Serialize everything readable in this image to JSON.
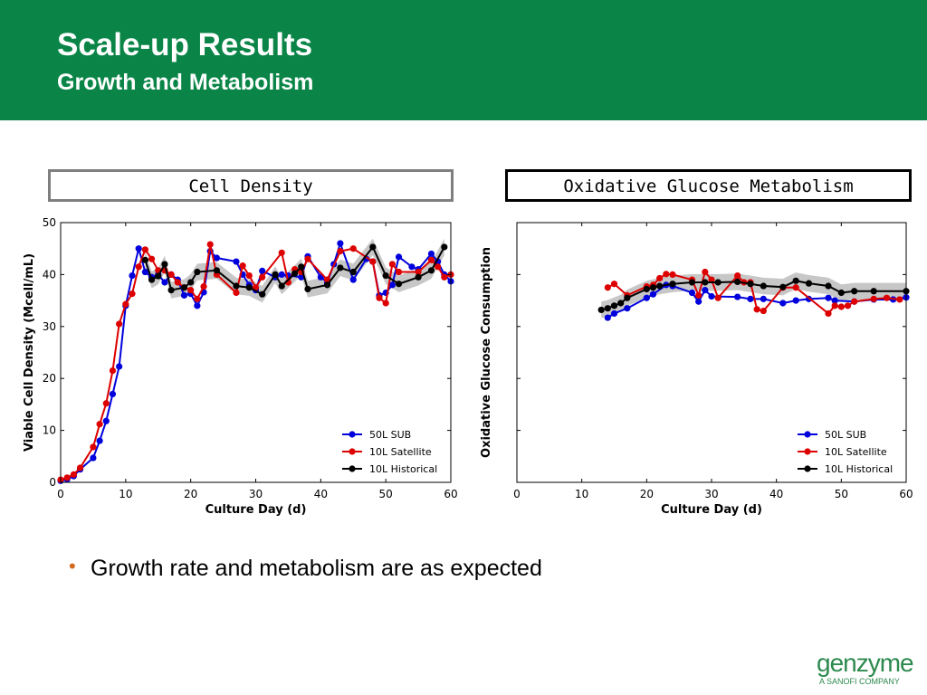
{
  "header": {
    "title": "Scale-up Results",
    "subtitle": "Growth and Metabolism"
  },
  "panels": {
    "left_label": "Cell Density",
    "right_label": "Oxidative Glucose Metabolism"
  },
  "bullet": {
    "text": "Growth rate and metabolism are as expected"
  },
  "logo": {
    "word": "genzyme",
    "tagline": "A SANOFI COMPANY"
  },
  "colors": {
    "header_green": "#0a8547",
    "series_blue": "#0000dd",
    "series_red": "#dd0000",
    "series_black": "#000000",
    "band_gray": "#999999",
    "bullet": "#d2691e"
  },
  "chart_data": [
    {
      "type": "line",
      "xlabel": "Culture Day (d)",
      "ylabel": "Viable Cell Density (Mcell/mL)",
      "xlim": [
        0,
        60
      ],
      "ylim": [
        0,
        50
      ],
      "xticks": [
        "0",
        "10",
        "20",
        "30",
        "40",
        "50",
        "60"
      ],
      "yticks": [
        "0",
        "10",
        "20",
        "30",
        "40",
        "50"
      ],
      "yticks_shown": true,
      "legend_position": "lower-right",
      "series": [
        {
          "name": "50L SUB",
          "color": "#0000dd",
          "points": [
            [
              0,
              0.3
            ],
            [
              1,
              0.6
            ],
            [
              2,
              1.2
            ],
            [
              3,
              2.5
            ],
            [
              5,
              4.7
            ],
            [
              6,
              8
            ],
            [
              7,
              11.8
            ],
            [
              8,
              17
            ],
            [
              9,
              22.3
            ],
            [
              10,
              34
            ],
            [
              11,
              39.8
            ],
            [
              12,
              45
            ],
            [
              13,
              40.5
            ],
            [
              14,
              39.5
            ],
            [
              15,
              40
            ],
            [
              16,
              38.5
            ],
            [
              17,
              40
            ],
            [
              18,
              39
            ],
            [
              19,
              36
            ],
            [
              20,
              36.3
            ],
            [
              21,
              34
            ],
            [
              22,
              36.6
            ],
            [
              23,
              44.5
            ],
            [
              24,
              43.2
            ],
            [
              27,
              42.5
            ],
            [
              28,
              40
            ],
            [
              29,
              38
            ],
            [
              30,
              37
            ],
            [
              31,
              40.7
            ],
            [
              33,
              39.5
            ],
            [
              34,
              40
            ],
            [
              35,
              39.8
            ],
            [
              37,
              39.5
            ],
            [
              38,
              43.5
            ],
            [
              40,
              39.5
            ],
            [
              41,
              38.5
            ],
            [
              42,
              42
            ],
            [
              43,
              46
            ],
            [
              45,
              39
            ],
            [
              47,
              43
            ],
            [
              48,
              42.5
            ],
            [
              49,
              36
            ],
            [
              50,
              36.5
            ],
            [
              51,
              38
            ],
            [
              52,
              43.4
            ],
            [
              54,
              41.5
            ],
            [
              55,
              41
            ],
            [
              57,
              44
            ],
            [
              58,
              42.5
            ],
            [
              59,
              40
            ],
            [
              60,
              38.7
            ]
          ]
        },
        {
          "name": "10L Satellite",
          "color": "#dd0000",
          "points": [
            [
              0,
              0.5
            ],
            [
              1,
              0.9
            ],
            [
              2,
              1.5
            ],
            [
              3,
              2.8
            ],
            [
              5,
              6.8
            ],
            [
              6,
              11.2
            ],
            [
              7,
              15.2
            ],
            [
              8,
              21.5
            ],
            [
              9,
              30.5
            ],
            [
              10,
              34.3
            ],
            [
              11,
              36.3
            ],
            [
              12,
              41.5
            ],
            [
              13,
              44.8
            ],
            [
              14,
              43
            ],
            [
              15,
              40.8
            ],
            [
              16,
              40.8
            ],
            [
              17,
              40
            ],
            [
              18,
              38.5
            ],
            [
              19,
              37.5
            ],
            [
              20,
              37
            ],
            [
              21,
              35.3
            ],
            [
              22,
              37.7
            ],
            [
              23,
              45.8
            ],
            [
              24,
              40
            ],
            [
              27,
              36.5
            ],
            [
              28,
              41.7
            ],
            [
              29,
              39.8
            ],
            [
              30,
              37.5
            ],
            [
              31,
              39.5
            ],
            [
              34,
              44.2
            ],
            [
              35,
              38.5
            ],
            [
              36,
              41
            ],
            [
              37,
              40.5
            ],
            [
              38,
              43
            ],
            [
              41,
              39
            ],
            [
              43,
              44.5
            ],
            [
              45,
              45
            ],
            [
              48,
              42.5
            ],
            [
              49,
              35.5
            ],
            [
              50,
              34.5
            ],
            [
              51,
              42
            ],
            [
              52,
              40.5
            ],
            [
              55,
              40.5
            ],
            [
              57,
              42.8
            ],
            [
              58,
              41.5
            ],
            [
              59,
              39.5
            ],
            [
              60,
              40
            ]
          ]
        },
        {
          "name": "10L Historical",
          "color": "#000000",
          "points": [
            [
              13,
              42.8
            ],
            [
              14,
              39
            ],
            [
              15,
              39.7
            ],
            [
              16,
              42
            ],
            [
              17,
              37
            ],
            [
              19,
              37.5
            ],
            [
              20,
              38.5
            ],
            [
              21,
              40.5
            ],
            [
              24,
              40.8
            ],
            [
              27,
              37.8
            ],
            [
              29,
              37.5
            ],
            [
              31,
              36.2
            ],
            [
              33,
              40
            ],
            [
              34,
              37.8
            ],
            [
              36,
              40.2
            ],
            [
              37,
              41.5
            ],
            [
              38,
              37.2
            ],
            [
              41,
              38
            ],
            [
              43,
              41.3
            ],
            [
              45,
              40.5
            ],
            [
              48,
              45.3
            ],
            [
              50,
              39.8
            ],
            [
              52,
              38.2
            ],
            [
              55,
              39.5
            ],
            [
              57,
              40.8
            ],
            [
              59,
              45.3
            ]
          ]
        }
      ]
    },
    {
      "type": "line",
      "xlabel": "Culture Day (d)",
      "ylabel": "Oxidative Glucose Consumption",
      "xlim": [
        0,
        60
      ],
      "ylim": [
        0,
        50
      ],
      "xticks": [
        "0",
        "10",
        "20",
        "30",
        "40",
        "50",
        "60"
      ],
      "yticks": [
        "",
        "",
        "",
        "",
        "",
        ""
      ],
      "yticks_shown": false,
      "legend_position": "lower-right",
      "series": [
        {
          "name": "50L SUB",
          "color": "#0000dd",
          "points": [
            [
              14,
              31.7
            ],
            [
              15,
              32.5
            ],
            [
              17,
              33.5
            ],
            [
              20,
              35.5
            ],
            [
              21,
              36.2
            ],
            [
              23,
              38
            ],
            [
              24,
              37.8
            ],
            [
              27,
              36.5
            ],
            [
              28,
              34.8
            ],
            [
              29,
              37
            ],
            [
              30,
              35.8
            ],
            [
              34,
              35.7
            ],
            [
              36,
              35.3
            ],
            [
              38,
              35.3
            ],
            [
              41,
              34.5
            ],
            [
              43,
              35
            ],
            [
              45,
              35.3
            ],
            [
              48,
              35.5
            ],
            [
              49,
              35
            ],
            [
              52,
              34.8
            ],
            [
              55,
              35.2
            ],
            [
              58,
              35.2
            ],
            [
              60,
              35.6
            ]
          ]
        },
        {
          "name": "10L Satellite",
          "color": "#dd0000",
          "points": [
            [
              14,
              37.5
            ],
            [
              15,
              38.2
            ],
            [
              17,
              36
            ],
            [
              20,
              37.7
            ],
            [
              21,
              38
            ],
            [
              22,
              39.3
            ],
            [
              23,
              40.1
            ],
            [
              24,
              40
            ],
            [
              27,
              39
            ],
            [
              28,
              36
            ],
            [
              29,
              40.5
            ],
            [
              30,
              39
            ],
            [
              31,
              35.5
            ],
            [
              34,
              39.8
            ],
            [
              35,
              38.5
            ],
            [
              36,
              38.5
            ],
            [
              37,
              33.3
            ],
            [
              38,
              33
            ],
            [
              41,
              37.5
            ],
            [
              43,
              37.5
            ],
            [
              48,
              32.5
            ],
            [
              49,
              34
            ],
            [
              50,
              33.8
            ],
            [
              51,
              34
            ],
            [
              52,
              34.8
            ],
            [
              55,
              35.3
            ],
            [
              57,
              35.5
            ],
            [
              59,
              35.2
            ]
          ]
        },
        {
          "name": "10L Historical",
          "color": "#000000",
          "points": [
            [
              13,
              33.2
            ],
            [
              14,
              33.5
            ],
            [
              15,
              34
            ],
            [
              16,
              34.5
            ],
            [
              17,
              35.5
            ],
            [
              20,
              37.2
            ],
            [
              21,
              37.5
            ],
            [
              22,
              37.8
            ],
            [
              24,
              38.2
            ],
            [
              27,
              38.5
            ],
            [
              29,
              38.5
            ],
            [
              31,
              38.5
            ],
            [
              34,
              38.6
            ],
            [
              36,
              38.2
            ],
            [
              38,
              37.8
            ],
            [
              41,
              37.6
            ],
            [
              43,
              38.8
            ],
            [
              45,
              38.3
            ],
            [
              48,
              37.8
            ],
            [
              50,
              36.5
            ],
            [
              52,
              36.8
            ],
            [
              55,
              36.8
            ],
            [
              60,
              36.8
            ]
          ]
        }
      ]
    }
  ]
}
